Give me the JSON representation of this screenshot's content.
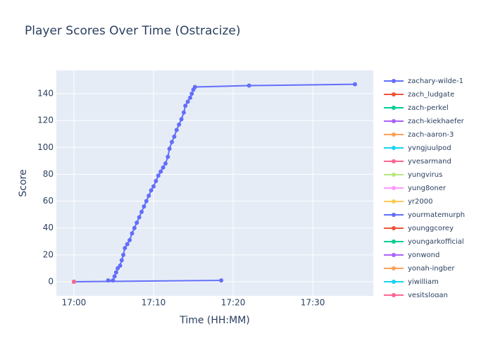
{
  "chart_data": {
    "type": "line",
    "title": "Player Scores Over Time (Ostracize)",
    "x_label": "Time (HH:MM)",
    "y_label": "Score",
    "xlim": [
      1017.79,
      1057.6
    ],
    "ylim": [
      -10.5,
      157.3
    ],
    "xticks": [
      {
        "value": 1020,
        "label": "17:00"
      },
      {
        "value": 1030,
        "label": "17:10"
      },
      {
        "value": 1040,
        "label": "17:20"
      },
      {
        "value": 1050,
        "label": "17:30"
      }
    ],
    "yticks": [
      0,
      20,
      40,
      60,
      80,
      100,
      120,
      140
    ],
    "grid": true,
    "legend": "right",
    "series": [
      {
        "name": "zachary-wilde-1",
        "color": "#636efa",
        "x": [
          1024.3,
          1024.9,
          1025.1,
          1025.3,
          1025.5,
          1025.8,
          1026.0,
          1026.2,
          1026.4,
          1026.7,
          1027.0,
          1027.3,
          1027.6,
          1027.9,
          1028.2,
          1028.5,
          1028.8,
          1029.1,
          1029.4,
          1029.7,
          1030.0,
          1030.3,
          1030.6,
          1030.9,
          1031.2,
          1031.5,
          1031.8,
          1032.0,
          1032.3,
          1032.6,
          1032.9,
          1033.2,
          1033.5,
          1033.8,
          1034.0,
          1034.3,
          1034.6,
          1034.8,
          1035.0,
          1035.2,
          1042.0,
          1055.3
        ],
        "values": [
          1,
          1,
          4,
          7,
          10,
          12,
          16,
          20,
          25,
          28,
          31,
          36,
          40,
          44,
          48,
          52,
          56,
          60,
          64,
          68,
          71,
          75,
          79,
          82,
          85,
          88,
          93,
          99,
          104,
          108,
          113,
          117,
          121,
          126,
          131,
          134,
          137,
          140,
          143,
          145,
          146,
          147
        ]
      },
      {
        "name": "zach_ludgate",
        "color": "#EF553B",
        "x": [
          1020
        ],
        "values": [
          0
        ]
      },
      {
        "name": "zach-perkel",
        "color": "#00cc96",
        "x": [
          1020
        ],
        "values": [
          0
        ]
      },
      {
        "name": "zach-kiekhaefer",
        "color": "#ab63fa",
        "x": [
          1020
        ],
        "values": [
          0
        ]
      },
      {
        "name": "zach-aaron-3",
        "color": "#FFA15A",
        "x": [
          1020
        ],
        "values": [
          0
        ]
      },
      {
        "name": "yvngjuulpod",
        "color": "#19d3f3",
        "x": [
          1020
        ],
        "values": [
          0
        ]
      },
      {
        "name": "yvesarmand",
        "color": "#FF6692",
        "x": [
          1020
        ],
        "values": [
          0
        ]
      },
      {
        "name": "yungvirus",
        "color": "#B6E880",
        "x": [
          1020
        ],
        "values": [
          0
        ]
      },
      {
        "name": "yung8oner",
        "color": "#FF97FF",
        "x": [
          1020
        ],
        "values": [
          0
        ]
      },
      {
        "name": "yr2000",
        "color": "#FECB52",
        "x": [
          1020
        ],
        "values": [
          0
        ]
      },
      {
        "name": "yourmatemurph",
        "color": "#636efa",
        "x": [
          1020,
          1038.5
        ],
        "values": [
          0,
          1
        ]
      },
      {
        "name": "younggcorey",
        "color": "#EF553B",
        "x": [
          1020
        ],
        "values": [
          0
        ]
      },
      {
        "name": "youngarkofficial",
        "color": "#00cc96",
        "x": [
          1020
        ],
        "values": [
          0
        ]
      },
      {
        "name": "yonwond",
        "color": "#ab63fa",
        "x": [
          1020
        ],
        "values": [
          0
        ]
      },
      {
        "name": "yonah-ingber",
        "color": "#FFA15A",
        "x": [
          1020
        ],
        "values": [
          0
        ]
      },
      {
        "name": "yiwilliam",
        "color": "#19d3f3",
        "x": [
          1020
        ],
        "values": [
          0
        ]
      },
      {
        "name": "yesitslogan",
        "color": "#FF6692",
        "x": [
          1020
        ],
        "values": [
          0
        ]
      }
    ]
  }
}
